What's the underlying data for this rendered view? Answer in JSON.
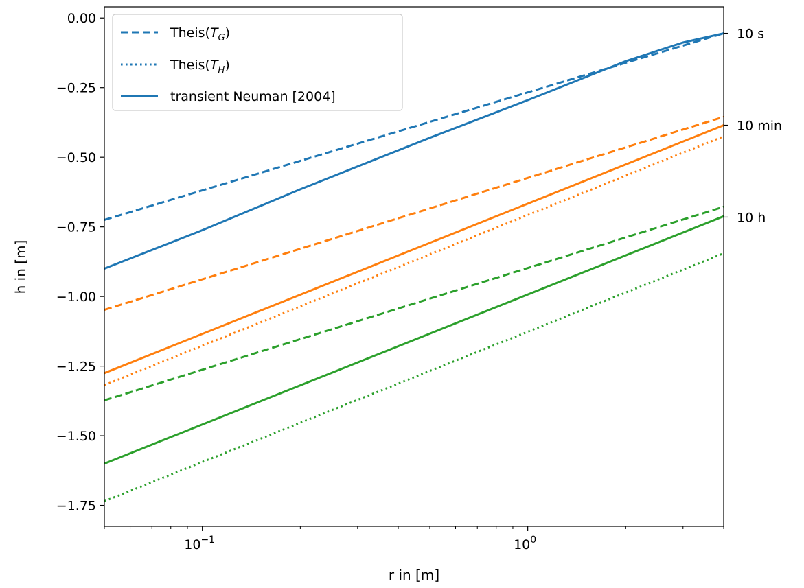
{
  "chart_data": {
    "type": "line",
    "xlabel": "r in [m]",
    "ylabel": "h in [m]",
    "x_scale": "log",
    "xlim": [
      0.05,
      4.0
    ],
    "ylim": [
      -1.825,
      0.04
    ],
    "grid": false,
    "legend_position": "top-left",
    "x_ticks": [
      {
        "value": 0.1,
        "base": "10",
        "exp": "−1"
      },
      {
        "value": 1.0,
        "base": "10",
        "exp": "0"
      }
    ],
    "y_ticks": [
      {
        "value": 0.0,
        "label": "0.00"
      },
      {
        "value": -0.25,
        "label": "−0.25"
      },
      {
        "value": -0.5,
        "label": "−0.50"
      },
      {
        "value": -0.75,
        "label": "−0.75"
      },
      {
        "value": -1.0,
        "label": "−1.00"
      },
      {
        "value": -1.25,
        "label": "−1.25"
      },
      {
        "value": -1.5,
        "label": "−1.50"
      },
      {
        "value": -1.75,
        "label": "−1.75"
      }
    ],
    "time_labels": [
      {
        "label": "10 s",
        "y": -0.055
      },
      {
        "label": "10 min",
        "y": -0.385
      },
      {
        "label": "10 h",
        "y": -0.715
      }
    ],
    "legend": [
      {
        "style": "dashed",
        "text": "Theis(",
        "sym": "T",
        "sub": "G",
        "tail": ")"
      },
      {
        "style": "dotted",
        "text": "Theis(",
        "sym": "T",
        "sub": "H",
        "tail": ")"
      },
      {
        "style": "solid",
        "text": "transient Neuman [2004]",
        "sym": "",
        "sub": "",
        "tail": ""
      }
    ],
    "series": [
      {
        "time": "10 s",
        "model": "Theis(T_G)",
        "style": "dashed",
        "color": "#1f77b4",
        "x": [
          0.05,
          4.0
        ],
        "y": [
          -0.725,
          -0.055
        ]
      },
      {
        "time": "10 s",
        "model": "transient Neuman [2004]",
        "style": "solid",
        "color": "#1f77b4",
        "x": [
          0.05,
          0.1,
          0.2,
          0.5,
          1.0,
          2.0,
          3.0,
          4.0
        ],
        "y": [
          -0.9,
          -0.762,
          -0.615,
          -0.43,
          -0.295,
          -0.155,
          -0.088,
          -0.055
        ]
      },
      {
        "time": "10 min",
        "model": "Theis(T_G)",
        "style": "dashed",
        "color": "#ff7f0e",
        "x": [
          0.05,
          4.0
        ],
        "y": [
          -1.048,
          -0.355
        ]
      },
      {
        "time": "10 min",
        "model": "transient Neuman [2004]",
        "style": "solid",
        "color": "#ff7f0e",
        "x": [
          0.05,
          4.0
        ],
        "y": [
          -1.275,
          -0.385
        ]
      },
      {
        "time": "10 min",
        "model": "Theis(T_H)",
        "style": "dotted",
        "color": "#ff7f0e",
        "x": [
          0.05,
          4.0
        ],
        "y": [
          -1.318,
          -0.425
        ]
      },
      {
        "time": "10 h",
        "model": "Theis(T_G)",
        "style": "dashed",
        "color": "#2ca02c",
        "x": [
          0.05,
          4.0
        ],
        "y": [
          -1.373,
          -0.678
        ]
      },
      {
        "time": "10 h",
        "model": "transient Neuman [2004]",
        "style": "solid",
        "color": "#2ca02c",
        "x": [
          0.05,
          4.0
        ],
        "y": [
          -1.6,
          -0.712
        ]
      },
      {
        "time": "10 h",
        "model": "Theis(T_H)",
        "style": "dotted",
        "color": "#2ca02c",
        "x": [
          0.05,
          4.0
        ],
        "y": [
          -1.735,
          -0.845
        ]
      }
    ]
  }
}
